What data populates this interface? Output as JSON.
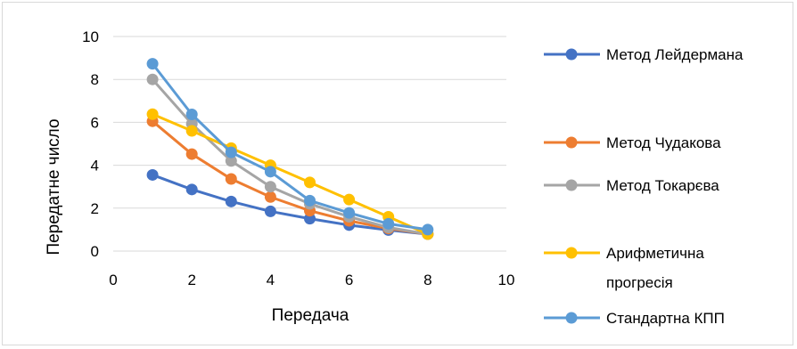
{
  "chart_data": {
    "type": "scatter",
    "xlabel": "Передача",
    "ylabel": "Передатне число",
    "xlim": [
      0,
      10
    ],
    "ylim": [
      0,
      10
    ],
    "xticks": [
      0,
      2,
      4,
      6,
      8,
      10
    ],
    "yticks": [
      0,
      2,
      4,
      6,
      8,
      10
    ],
    "grid": "horizontal",
    "legend_position": "right",
    "series": [
      {
        "name": "Метод Лейдермана",
        "color": "#4472c4",
        "x": [
          1,
          2,
          3,
          4,
          5,
          6,
          7,
          8
        ],
        "y": [
          3.55,
          2.87,
          2.31,
          1.85,
          1.51,
          1.21,
          0.98,
          0.79
        ]
      },
      {
        "name": "Метод Чудакова",
        "color": "#ed7d31",
        "x": [
          1,
          2,
          3,
          4,
          5,
          6,
          7,
          8
        ],
        "y": [
          6.05,
          4.52,
          3.36,
          2.52,
          1.88,
          1.41,
          1.05,
          0.79
        ]
      },
      {
        "name": "Метод Токарєва",
        "color": "#a5a5a5",
        "x": [
          1,
          2,
          3,
          4,
          5,
          6,
          7,
          8
        ],
        "y": [
          8.0,
          5.93,
          4.2,
          3.0,
          2.2,
          1.6,
          1.1,
          0.79
        ]
      },
      {
        "name": "Арифметична прогресія",
        "color": "#ffc000",
        "x": [
          1,
          2,
          3,
          4,
          5,
          6,
          7,
          8
        ],
        "y": [
          6.38,
          5.6,
          4.8,
          4.0,
          3.2,
          2.4,
          1.6,
          0.79
        ]
      },
      {
        "name": "Стандартна КПП",
        "color": "#5b9bd5",
        "x": [
          1,
          2,
          3,
          4,
          5,
          6,
          7,
          8
        ],
        "y": [
          8.73,
          6.37,
          4.6,
          3.7,
          2.35,
          1.78,
          1.27,
          1.0
        ]
      }
    ]
  },
  "legend_labels": {
    "s1": "Метод Лейдермана",
    "s2": "Метод Чудакова",
    "s3": "Метод Токарєва",
    "s4_line1": "Арифметична",
    "s4_line2": "прогресія",
    "s5": "Стандартна КПП"
  }
}
